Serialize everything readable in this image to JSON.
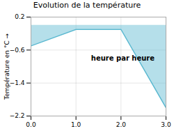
{
  "chart_data": {
    "type": "area",
    "title": "Evolution de la température",
    "ylabel": "Température en °C",
    "xlabel": "heure par heure",
    "x": [
      0,
      1,
      2,
      3
    ],
    "values": [
      -0.5,
      -0.1,
      -0.1,
      -2.0
    ],
    "color": "#5ab8d0",
    "xlim": [
      0,
      3
    ],
    "ylim": [
      -2.2,
      0.2
    ],
    "xticks": [
      0,
      1,
      2,
      3
    ],
    "yticks": [
      0.2,
      -0.6,
      -1.4,
      -2.2
    ],
    "grid": true
  }
}
